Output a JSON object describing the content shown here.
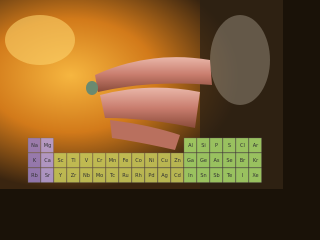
{
  "periodic_table": {
    "rows": [
      {
        "left": [
          "Na",
          "Mg"
        ],
        "right": [
          "Al",
          "Si",
          "P",
          "S",
          "Cl",
          "Ar"
        ]
      },
      {
        "left": [
          "K",
          "Ca",
          "Sc",
          "Ti",
          "V",
          "Cr",
          "Mn",
          "Fe",
          "Co",
          "Ni",
          "Cu",
          "Zn"
        ],
        "right": [
          "Ga",
          "Ge",
          "As",
          "Se",
          "Br",
          "Kr"
        ]
      },
      {
        "left": [
          "Rb",
          "Sr",
          "Y",
          "Zr",
          "Nb",
          "Mo",
          "Tc",
          "Ru",
          "Rh",
          "Pd",
          "Ag",
          "Cd"
        ],
        "right": [
          "In",
          "Sn",
          "Sb",
          "Te",
          "I",
          "Xe"
        ]
      }
    ]
  }
}
